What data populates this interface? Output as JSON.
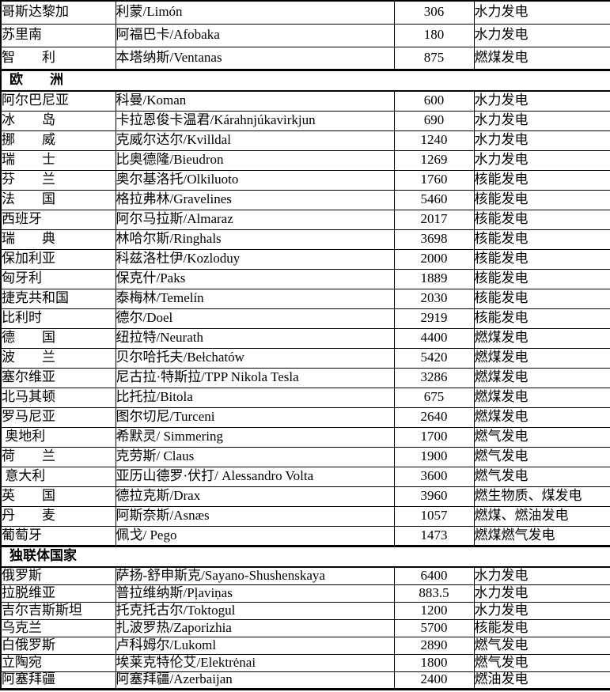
{
  "colors": {
    "background": "#ffffff",
    "text": "#000000",
    "border": "#000000"
  },
  "table": {
    "column_keys": [
      "country",
      "plant",
      "capacity",
      "type"
    ],
    "groups": [
      {
        "kind": "rows",
        "region": "americas",
        "rows": [
          {
            "country": "哥斯达黎加",
            "plant": "利蒙/Limón",
            "capacity": "306",
            "type": "水力发电"
          },
          {
            "country": "苏里南",
            "plant": "阿福巴卡/Afobaka",
            "capacity": "180",
            "type": "水力发电"
          },
          {
            "country": "智　　利",
            "plant": "本塔纳斯/Ventanas",
            "capacity": "875",
            "type": "燃煤发电"
          }
        ]
      },
      {
        "kind": "section",
        "label": "欧　　洲"
      },
      {
        "kind": "rows",
        "region": "europe",
        "rows": [
          {
            "country": "阿尔巴尼亚",
            "plant": "科曼/Koman",
            "capacity": "600",
            "type": "水力发电"
          },
          {
            "country": "冰　　岛",
            "plant": "卡拉恩俊卡温君/Kárahnjúkavirkjun",
            "capacity": "690",
            "type": "水力发电"
          },
          {
            "country": "挪　　威",
            "plant": "克威尔达尔/Kvilldal",
            "capacity": "1240",
            "type": "水力发电"
          },
          {
            "country": "瑞　　士",
            "plant": "比奥德隆/Bieudron",
            "capacity": "1269",
            "type": "水力发电"
          },
          {
            "country": "芬　　兰",
            "plant": "奥尔基洛托/Olkiluoto",
            "capacity": "1760",
            "type": "核能发电"
          },
          {
            "country": "法　　国",
            "plant": "格拉弗林/Gravelines",
            "capacity": "5460",
            "type": "核能发电"
          },
          {
            "country": "西班牙",
            "plant": "阿尔马拉斯/Almaraz",
            "capacity": "2017",
            "type": "核能发电"
          },
          {
            "country": "瑞　　典",
            "plant": "林哈尔斯/Ringhals",
            "capacity": "3698",
            "type": "核能发电"
          },
          {
            "country": "保加利亚",
            "plant": "科兹洛杜伊/Kozloduy",
            "capacity": "2000",
            "type": "核能发电"
          },
          {
            "country": "匈牙利",
            "plant": "保克什/Paks",
            "capacity": "1889",
            "type": "核能发电"
          },
          {
            "country": "捷克共和国",
            "plant": "泰梅林/Temelín",
            "capacity": "2030",
            "type": "核能发电"
          },
          {
            "country": "比利时",
            "plant": "德尔/Doel",
            "capacity": "2919",
            "type": "核能发电"
          },
          {
            "country": "德　　国",
            "plant": "纽拉特/Neurath",
            "capacity": "4400",
            "type": "燃煤发电"
          },
          {
            "country": "波　　兰",
            "plant": "贝尔哈托夫/Bełchatów",
            "capacity": "5420",
            "type": "燃煤发电"
          },
          {
            "country": "塞尔维亚",
            "plant": "尼古拉·特斯拉/TPP Nikola Tesla",
            "capacity": "3286",
            "type": "燃煤发电"
          },
          {
            "country": "北马其顿",
            "plant": "比托拉/Bitola",
            "capacity": "675",
            "type": "燃煤发电"
          },
          {
            "country": "罗马尼亚",
            "plant": "图尔切尼/Turceni",
            "capacity": "2640",
            "type": "燃煤发电"
          },
          {
            "country": " 奥地利",
            "plant": "希默灵/ Simmering",
            "capacity": "1700",
            "type": "燃气发电"
          },
          {
            "country": "荷　　兰",
            "plant": "克劳斯/ Claus",
            "capacity": "1900",
            "type": "燃气发电"
          },
          {
            "country": " 意大利",
            "plant": "亚历山德罗·伏打/ Alessandro Volta",
            "capacity": "3600",
            "type": "燃气发电"
          },
          {
            "country": "英　　国",
            "plant": "德拉克斯/Drax",
            "capacity": "3960",
            "type": "燃生物质、煤发电"
          },
          {
            "country": "丹　　麦",
            "plant": "阿斯奈斯/Asnæs",
            "capacity": "1057",
            "type": "燃煤、燃油发电"
          },
          {
            "country": "葡萄牙",
            "plant": "佩戈/ Pego",
            "capacity": "1473",
            "type": "燃煤燃气发电"
          }
        ]
      },
      {
        "kind": "section",
        "label": "独联体国家"
      },
      {
        "kind": "rows",
        "region": "cis",
        "rows": [
          {
            "country": "俄罗斯",
            "plant": "萨扬-舒申斯克/Sayano-Shushenskaya",
            "capacity": "6400",
            "type": "水力发电"
          },
          {
            "country": "拉脱维亚",
            "plant": "普拉维纳斯/Pļaviņas",
            "capacity": "883.5",
            "type": "水力发电"
          },
          {
            "country": "吉尔吉斯斯坦",
            "plant": "托克托古尔/Toktogul",
            "capacity": "1200",
            "type": "水力发电"
          },
          {
            "country": "乌克兰",
            "plant": "扎波罗热/Zaporizhia",
            "capacity": "5700",
            "type": "核能发电"
          },
          {
            "country": "白俄罗斯",
            "plant": "卢科姆尔/Lukoml",
            "capacity": "2890",
            "type": "燃气发电"
          },
          {
            "country": "立陶宛",
            "plant": "埃莱克特伦艾/Elektrėnai",
            "capacity": "1800",
            "type": "燃气发电"
          },
          {
            "country": "阿塞拜疆",
            "plant": "阿塞拜疆/Azerbaijan",
            "capacity": "2400",
            "type": "燃油发电"
          }
        ]
      }
    ]
  }
}
